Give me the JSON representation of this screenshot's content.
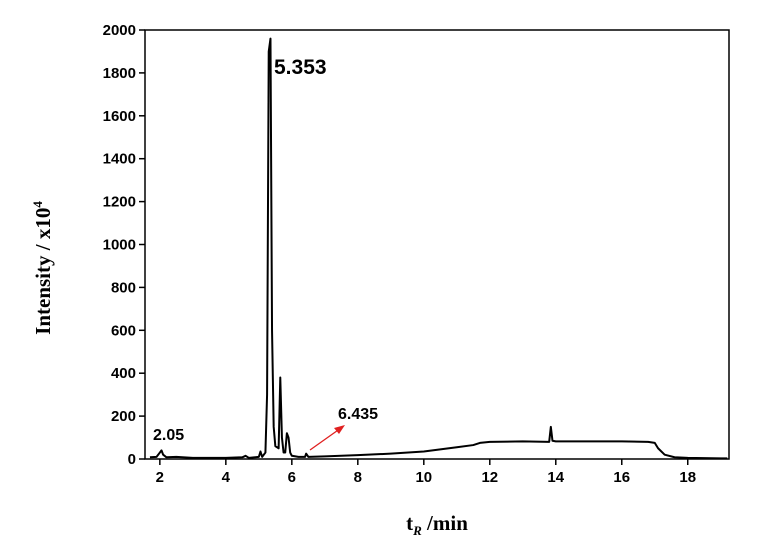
{
  "chart_data": {
    "type": "line",
    "ylabel": "Intensity / x10",
    "ylabel_sup": "4",
    "xlabel": "t",
    "xlabel_sub": "R",
    "xlabel_rest": " /min",
    "annotations": [
      "5.353",
      "2.05",
      "6.435"
    ],
    "color": "#000000",
    "x": [
      1.7,
      1.9,
      2.0,
      2.05,
      2.1,
      2.2,
      2.5,
      3,
      3.5,
      4,
      4.5,
      4.6,
      4.7,
      5.0,
      5.05,
      5.1,
      5.2,
      5.25,
      5.3,
      5.353,
      5.4,
      5.45,
      5.5,
      5.6,
      5.65,
      5.7,
      5.75,
      5.8,
      5.85,
      5.9,
      5.95,
      6.0,
      6.2,
      6.4,
      6.435,
      6.5,
      7,
      8,
      9,
      10,
      10.5,
      11,
      11.5,
      11.7,
      12,
      13,
      13.8,
      13.85,
      13.9,
      14,
      15,
      16,
      16.8,
      17,
      17.1,
      17.3,
      17.6,
      18,
      19,
      19.2
    ],
    "values": [
      8,
      10,
      30,
      40,
      20,
      8,
      10,
      5,
      5,
      5,
      8,
      15,
      5,
      10,
      35,
      10,
      30,
      300,
      1900,
      1960,
      600,
      150,
      60,
      50,
      380,
      100,
      30,
      30,
      120,
      100,
      30,
      15,
      10,
      10,
      25,
      10,
      12,
      18,
      25,
      35,
      45,
      55,
      65,
      75,
      80,
      82,
      80,
      150,
      85,
      82,
      82,
      82,
      80,
      75,
      50,
      20,
      8,
      5,
      3,
      3
    ],
    "xlim": [
      1.55,
      19.25
    ],
    "ylim": [
      0,
      2000
    ],
    "xticks": [
      2,
      4,
      6,
      8,
      10,
      12,
      14,
      16,
      18
    ],
    "yticks": [
      0,
      200,
      400,
      600,
      800,
      1000,
      1200,
      1400,
      1600,
      1800,
      2000
    ]
  }
}
